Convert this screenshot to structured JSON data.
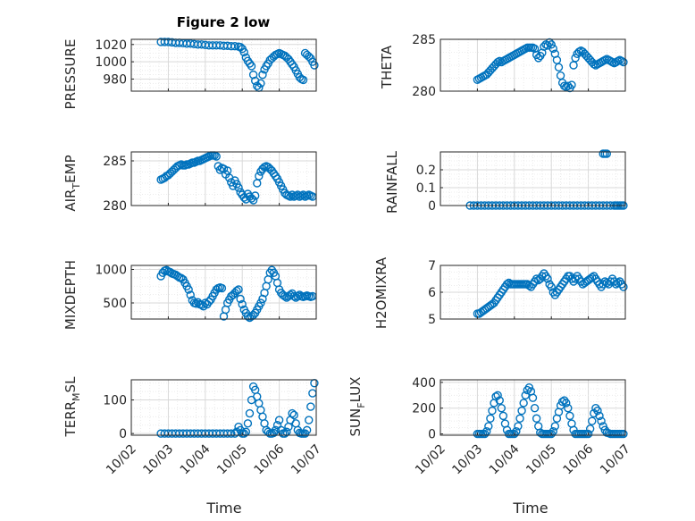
{
  "figure": {
    "title": "Figure 2 low"
  },
  "colors": {
    "marker": "#0072BD",
    "axis": "#262626",
    "grid": "#d9d9d9"
  },
  "x_ticks": [
    "10/02",
    "10/03",
    "10/04",
    "10/05",
    "10/06",
    "10/07"
  ],
  "chart_data": [
    {
      "type": "scatter",
      "ylabel": "PRESSURE",
      "title": "Figure 2 low",
      "xlim": [
        0,
        5
      ],
      "ylim": [
        966,
        1026
      ],
      "yticks": [
        980,
        1000,
        1020
      ],
      "ytick_labels": [
        "980",
        "1000",
        "1020"
      ],
      "x": [
        0.8,
        0.9,
        1.0,
        1.1,
        1.2,
        1.3,
        1.4,
        1.5,
        1.6,
        1.7,
        1.8,
        1.9,
        2.0,
        2.1,
        2.2,
        2.3,
        2.4,
        2.5,
        2.6,
        2.7,
        2.8,
        2.9,
        2.95,
        3.0,
        3.05,
        3.1,
        3.15,
        3.2,
        3.25,
        3.3,
        3.35,
        3.4,
        3.45,
        3.5,
        3.55,
        3.6,
        3.65,
        3.7,
        3.75,
        3.8,
        3.85,
        3.9,
        3.95,
        4.0,
        4.05,
        4.1,
        4.15,
        4.2,
        4.25,
        4.3,
        4.35,
        4.4,
        4.45,
        4.5,
        4.55,
        4.6,
        4.65,
        4.7,
        4.75,
        4.8,
        4.85,
        4.9,
        4.95
      ],
      "y": [
        1023,
        1023,
        1023,
        1022.5,
        1022,
        1022,
        1021.5,
        1021,
        1021,
        1020.5,
        1020,
        1020,
        1019.5,
        1019,
        1019,
        1019,
        1019,
        1018.5,
        1018.5,
        1018,
        1018,
        1017.5,
        1017,
        1015,
        1011,
        1005,
        1001,
        998,
        995,
        985,
        978,
        972,
        970,
        975,
        985,
        991,
        995,
        998,
        1002,
        1004,
        1006,
        1008,
        1009,
        1010,
        1009,
        1008,
        1007,
        1005,
        1003,
        1000,
        997,
        994,
        990,
        986,
        982,
        980,
        979,
        1010,
        1008,
        1006,
        1004,
        1000,
        996
      ],
      "grid": true
    },
    {
      "type": "scatter",
      "ylabel": "THETA",
      "xlim": [
        0,
        5
      ],
      "ylim": [
        280,
        285
      ],
      "yticks": [
        280,
        285
      ],
      "ytick_labels": [
        "280",
        "285"
      ],
      "x": [
        1.0,
        1.05,
        1.1,
        1.15,
        1.2,
        1.25,
        1.3,
        1.35,
        1.4,
        1.45,
        1.5,
        1.55,
        1.6,
        1.65,
        1.7,
        1.75,
        1.8,
        1.85,
        1.9,
        1.95,
        2.0,
        2.05,
        2.1,
        2.15,
        2.2,
        2.25,
        2.3,
        2.35,
        2.4,
        2.45,
        2.5,
        2.55,
        2.6,
        2.65,
        2.7,
        2.75,
        2.8,
        2.85,
        2.9,
        2.95,
        3.0,
        3.05,
        3.1,
        3.15,
        3.2,
        3.25,
        3.3,
        3.35,
        3.4,
        3.45,
        3.5,
        3.55,
        3.6,
        3.65,
        3.7,
        3.75,
        3.8,
        3.85,
        3.9,
        3.95,
        4.0,
        4.05,
        4.1,
        4.15,
        4.2,
        4.25,
        4.3,
        4.35,
        4.4,
        4.45,
        4.5,
        4.55,
        4.6,
        4.65,
        4.7,
        4.75,
        4.8,
        4.85,
        4.9,
        4.95
      ],
      "y": [
        281.1,
        281.2,
        281.3,
        281.4,
        281.5,
        281.6,
        281.8,
        282.0,
        282.2,
        282.4,
        282.6,
        282.8,
        282.9,
        282.8,
        282.9,
        283.0,
        283.1,
        283.2,
        283.3,
        283.4,
        283.5,
        283.6,
        283.7,
        283.8,
        283.9,
        284.0,
        284.1,
        284.2,
        284.2,
        284.2,
        284.2,
        284.1,
        283.5,
        283.2,
        283.4,
        283.7,
        284.3,
        284.5,
        284.4,
        284.7,
        284.5,
        284.1,
        283.6,
        283.0,
        282.3,
        281.5,
        280.8,
        280.5,
        280.4,
        280.5,
        280.3,
        280.6,
        282.5,
        283.2,
        283.6,
        283.8,
        283.9,
        283.8,
        283.6,
        283.4,
        283.2,
        283.0,
        282.8,
        282.6,
        282.5,
        282.6,
        282.7,
        282.8,
        282.9,
        283.0,
        283.1,
        283.0,
        282.9,
        282.8,
        282.7,
        282.8,
        282.9,
        283.0,
        282.9,
        282.8
      ],
      "grid": true
    },
    {
      "type": "scatter",
      "ylabel": "AIR_TEMP",
      "xlim": [
        0,
        5
      ],
      "ylim": [
        280,
        286
      ],
      "yticks": [
        280,
        285
      ],
      "ytick_labels": [
        "280",
        "285"
      ],
      "x": [
        0.8,
        0.85,
        0.9,
        0.95,
        1.0,
        1.05,
        1.1,
        1.15,
        1.2,
        1.25,
        1.3,
        1.35,
        1.4,
        1.45,
        1.5,
        1.55,
        1.6,
        1.65,
        1.7,
        1.75,
        1.8,
        1.85,
        1.9,
        1.95,
        2.0,
        2.05,
        2.1,
        2.15,
        2.2,
        2.25,
        2.3,
        2.35,
        2.4,
        2.45,
        2.5,
        2.55,
        2.6,
        2.65,
        2.7,
        2.75,
        2.8,
        2.85,
        2.9,
        2.95,
        3.0,
        3.05,
        3.1,
        3.15,
        3.2,
        3.25,
        3.3,
        3.35,
        3.4,
        3.45,
        3.5,
        3.55,
        3.6,
        3.65,
        3.7,
        3.75,
        3.8,
        3.85,
        3.9,
        3.95,
        4.0,
        4.05,
        4.1,
        4.15,
        4.2,
        4.25,
        4.3,
        4.35,
        4.4,
        4.45,
        4.5,
        4.55,
        4.6,
        4.65,
        4.7,
        4.75,
        4.8,
        4.85,
        4.9
      ],
      "y": [
        282.9,
        283.0,
        283.1,
        283.3,
        283.4,
        283.6,
        283.8,
        284.0,
        284.2,
        284.4,
        284.5,
        284.6,
        284.5,
        284.5,
        284.6,
        284.6,
        284.7,
        284.8,
        284.8,
        284.9,
        285.0,
        285.0,
        285.1,
        285.2,
        285.3,
        285.4,
        285.5,
        285.6,
        285.6,
        285.6,
        285.5,
        284.4,
        284.0,
        284.2,
        284.1,
        283.5,
        283.9,
        283.1,
        282.6,
        282.2,
        282.8,
        282.4,
        282.0,
        281.5,
        281.2,
        280.9,
        280.7,
        281.3,
        281.0,
        280.8,
        280.6,
        281.1,
        282.5,
        283.3,
        283.8,
        284.1,
        284.3,
        284.4,
        284.3,
        284.1,
        283.9,
        283.6,
        283.3,
        283.0,
        282.6,
        282.2,
        281.8,
        281.4,
        281.2,
        281.1,
        281.0,
        281.2,
        281.0,
        281.1,
        281.2,
        281.0,
        281.1,
        281.2,
        281.0,
        281.1,
        281.2,
        281.1,
        281.0
      ],
      "grid": true
    },
    {
      "type": "scatter",
      "ylabel": "RAINFALL",
      "xlim": [
        0,
        5
      ],
      "ylim": [
        0,
        0.3
      ],
      "yticks": [
        0,
        0.1,
        0.2
      ],
      "ytick_labels": [
        "0",
        "0.1",
        "0.2"
      ],
      "x": [
        0.8,
        0.9,
        1.0,
        1.1,
        1.2,
        1.3,
        1.4,
        1.5,
        1.6,
        1.7,
        1.8,
        1.9,
        2.0,
        2.1,
        2.2,
        2.3,
        2.4,
        2.5,
        2.6,
        2.7,
        2.8,
        2.9,
        3.0,
        3.1,
        3.2,
        3.3,
        3.4,
        3.5,
        3.6,
        3.7,
        3.8,
        3.9,
        4.0,
        4.1,
        4.2,
        4.3,
        4.4,
        4.5,
        4.6,
        4.7,
        4.75,
        4.8,
        4.85,
        4.9,
        4.95,
        4.4,
        4.45,
        4.5
      ],
      "y": [
        0,
        0,
        0,
        0,
        0,
        0,
        0,
        0,
        0,
        0,
        0,
        0,
        0,
        0,
        0,
        0,
        0,
        0,
        0,
        0,
        0,
        0,
        0,
        0,
        0,
        0,
        0,
        0,
        0,
        0,
        0,
        0,
        0,
        0,
        0,
        0,
        0,
        0,
        0,
        0,
        0,
        0,
        0,
        0,
        0,
        0.29,
        0.29,
        0.29
      ],
      "grid": true
    },
    {
      "type": "scatter",
      "ylabel": "MIXDEPTH",
      "xlim": [
        0,
        5
      ],
      "ylim": [
        260,
        1060
      ],
      "yticks": [
        500,
        1000
      ],
      "ytick_labels": [
        "500",
        "1000"
      ],
      "x": [
        0.8,
        0.85,
        0.9,
        0.95,
        1.0,
        1.05,
        1.1,
        1.15,
        1.2,
        1.25,
        1.3,
        1.35,
        1.4,
        1.45,
        1.5,
        1.55,
        1.6,
        1.65,
        1.7,
        1.75,
        1.8,
        1.85,
        1.9,
        1.95,
        2.0,
        2.05,
        2.1,
        2.15,
        2.2,
        2.25,
        2.3,
        2.35,
        2.4,
        2.45,
        2.5,
        2.55,
        2.6,
        2.65,
        2.7,
        2.75,
        2.8,
        2.85,
        2.9,
        2.95,
        3.0,
        3.05,
        3.1,
        3.15,
        3.2,
        3.25,
        3.3,
        3.35,
        3.4,
        3.45,
        3.5,
        3.55,
        3.6,
        3.65,
        3.7,
        3.75,
        3.8,
        3.85,
        3.9,
        3.95,
        4.0,
        4.05,
        4.1,
        4.15,
        4.2,
        4.25,
        4.3,
        4.35,
        4.4,
        4.45,
        4.5,
        4.55,
        4.6,
        4.65,
        4.7,
        4.75,
        4.8,
        4.85,
        4.9
      ],
      "y": [
        900,
        950,
        980,
        990,
        970,
        960,
        940,
        930,
        920,
        900,
        880,
        870,
        850,
        800,
        750,
        700,
        620,
        540,
        500,
        490,
        510,
        480,
        470,
        450,
        500,
        480,
        520,
        550,
        600,
        650,
        700,
        720,
        730,
        720,
        300,
        400,
        500,
        550,
        600,
        620,
        650,
        680,
        700,
        560,
        480,
        400,
        350,
        300,
        280,
        300,
        320,
        350,
        400,
        450,
        500,
        560,
        650,
        750,
        850,
        950,
        990,
        950,
        900,
        800,
        700,
        650,
        620,
        600,
        580,
        600,
        620,
        640,
        600,
        580,
        600,
        620,
        600,
        590,
        600,
        610,
        600,
        590,
        600
      ],
      "grid": true
    },
    {
      "type": "scatter",
      "ylabel": "H2OMIXRA",
      "xlim": [
        0,
        5
      ],
      "ylim": [
        5,
        7
      ],
      "yticks": [
        5,
        6,
        7
      ],
      "ytick_labels": [
        "5",
        "6",
        "7"
      ],
      "x": [
        1.0,
        1.05,
        1.1,
        1.15,
        1.2,
        1.25,
        1.3,
        1.35,
        1.4,
        1.45,
        1.5,
        1.55,
        1.6,
        1.65,
        1.7,
        1.75,
        1.8,
        1.85,
        1.9,
        1.95,
        2.0,
        2.05,
        2.1,
        2.15,
        2.2,
        2.25,
        2.3,
        2.35,
        2.4,
        2.45,
        2.5,
        2.55,
        2.6,
        2.65,
        2.7,
        2.75,
        2.8,
        2.85,
        2.9,
        2.95,
        3.0,
        3.05,
        3.1,
        3.15,
        3.2,
        3.25,
        3.3,
        3.35,
        3.4,
        3.45,
        3.5,
        3.55,
        3.6,
        3.65,
        3.7,
        3.75,
        3.8,
        3.85,
        3.9,
        3.95,
        4.0,
        4.05,
        4.1,
        4.15,
        4.2,
        4.25,
        4.3,
        4.35,
        4.4,
        4.45,
        4.5,
        4.55,
        4.6,
        4.65,
        4.7,
        4.75,
        4.8,
        4.85,
        4.9,
        4.95
      ],
      "y": [
        5.2,
        5.2,
        5.25,
        5.3,
        5.35,
        5.4,
        5.45,
        5.5,
        5.55,
        5.6,
        5.7,
        5.8,
        5.9,
        6.0,
        6.1,
        6.2,
        6.3,
        6.35,
        6.3,
        6.3,
        6.3,
        6.3,
        6.3,
        6.3,
        6.3,
        6.3,
        6.3,
        6.3,
        6.25,
        6.2,
        6.3,
        6.4,
        6.5,
        6.45,
        6.5,
        6.6,
        6.7,
        6.6,
        6.5,
        6.3,
        6.2,
        6.0,
        5.9,
        6.0,
        6.1,
        6.2,
        6.3,
        6.4,
        6.5,
        6.6,
        6.6,
        6.5,
        6.4,
        6.5,
        6.6,
        6.5,
        6.4,
        6.3,
        6.35,
        6.4,
        6.45,
        6.5,
        6.55,
        6.6,
        6.5,
        6.4,
        6.3,
        6.2,
        6.3,
        6.4,
        6.35,
        6.3,
        6.4,
        6.5,
        6.4,
        6.3,
        6.35,
        6.4,
        6.3,
        6.2
      ],
      "grid": true
    },
    {
      "type": "scatter",
      "ylabel": "TERR_MSL",
      "xlim": [
        0,
        5
      ],
      "ylim": [
        -5,
        160
      ],
      "yticks": [
        0,
        100
      ],
      "ytick_labels": [
        "0",
        "100"
      ],
      "x": [
        0.8,
        0.9,
        1.0,
        1.1,
        1.2,
        1.3,
        1.4,
        1.5,
        1.6,
        1.7,
        1.8,
        1.9,
        2.0,
        2.1,
        2.2,
        2.3,
        2.4,
        2.5,
        2.6,
        2.7,
        2.8,
        2.85,
        2.9,
        2.95,
        3.0,
        3.05,
        3.1,
        3.15,
        3.2,
        3.25,
        3.3,
        3.35,
        3.4,
        3.45,
        3.5,
        3.55,
        3.6,
        3.65,
        3.7,
        3.75,
        3.8,
        3.85,
        3.9,
        3.95,
        4.0,
        4.05,
        4.1,
        4.15,
        4.2,
        4.25,
        4.3,
        4.35,
        4.4,
        4.45,
        4.5,
        4.55,
        4.6,
        4.65,
        4.7,
        4.75,
        4.8,
        4.85,
        4.9,
        4.95
      ],
      "y": [
        0,
        0,
        0,
        0,
        0,
        0,
        0,
        0,
        0,
        0,
        0,
        0,
        0,
        0,
        0,
        0,
        0,
        0,
        0,
        0,
        0,
        5,
        20,
        10,
        0,
        0,
        5,
        30,
        60,
        100,
        140,
        130,
        110,
        90,
        70,
        50,
        30,
        10,
        5,
        0,
        0,
        2,
        10,
        25,
        40,
        10,
        0,
        0,
        5,
        20,
        40,
        60,
        55,
        30,
        10,
        2,
        0,
        0,
        0,
        10,
        40,
        80,
        120,
        150
      ],
      "grid": true
    },
    {
      "type": "scatter",
      "ylabel": "SUN_FLUX",
      "xlim": [
        0,
        5
      ],
      "ylim": [
        -10,
        420
      ],
      "yticks": [
        0,
        200,
        400
      ],
      "ytick_labels": [
        "0",
        "200",
        "400"
      ],
      "x": [
        1.0,
        1.05,
        1.1,
        1.15,
        1.2,
        1.25,
        1.3,
        1.35,
        1.4,
        1.45,
        1.5,
        1.55,
        1.6,
        1.65,
        1.7,
        1.75,
        1.8,
        1.85,
        1.9,
        1.95,
        2.0,
        2.05,
        2.1,
        2.15,
        2.2,
        2.25,
        2.3,
        2.35,
        2.4,
        2.45,
        2.5,
        2.55,
        2.6,
        2.65,
        2.7,
        2.75,
        2.8,
        2.85,
        2.9,
        2.95,
        3.0,
        3.05,
        3.1,
        3.15,
        3.2,
        3.25,
        3.3,
        3.35,
        3.4,
        3.45,
        3.5,
        3.55,
        3.6,
        3.65,
        3.7,
        3.75,
        3.8,
        3.85,
        3.9,
        3.95,
        4.0,
        4.05,
        4.1,
        4.15,
        4.2,
        4.25,
        4.3,
        4.35,
        4.4,
        4.45,
        4.5,
        4.55,
        4.6,
        4.65,
        4.7,
        4.75,
        4.8,
        4.85,
        4.9,
        4.95
      ],
      "y": [
        0,
        0,
        0,
        0,
        0,
        20,
        60,
        120,
        180,
        240,
        290,
        300,
        260,
        200,
        140,
        80,
        30,
        0,
        0,
        0,
        0,
        20,
        60,
        120,
        180,
        240,
        300,
        340,
        360,
        330,
        280,
        200,
        120,
        60,
        10,
        0,
        0,
        0,
        0,
        0,
        0,
        20,
        60,
        120,
        170,
        220,
        250,
        260,
        240,
        200,
        140,
        80,
        30,
        0,
        0,
        0,
        0,
        0,
        0,
        0,
        0,
        40,
        100,
        160,
        200,
        180,
        140,
        100,
        60,
        30,
        10,
        5,
        0,
        0,
        0,
        0,
        0,
        0,
        0,
        0
      ],
      "grid": true
    }
  ]
}
